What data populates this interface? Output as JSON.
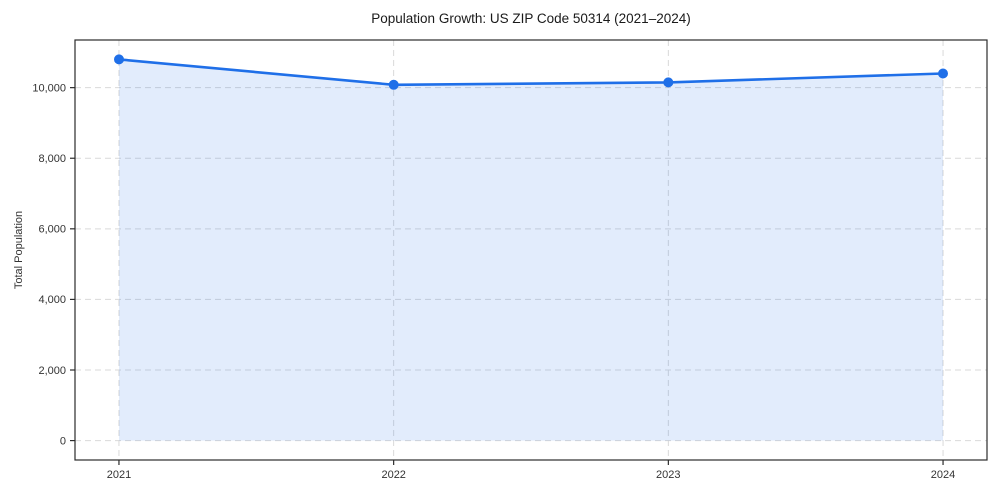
{
  "figure": {
    "background": "#ffffff"
  },
  "chart_data": {
    "type": "line",
    "title": "Population Growth: US ZIP Code 50314 (2021–2024)",
    "xlabel": "",
    "ylabel": "Total Population",
    "x": [
      2021,
      2022,
      2023,
      2024
    ],
    "x_tick_labels": [
      "2021",
      "2022",
      "2023",
      "2024"
    ],
    "series": [
      {
        "name": "Total Population",
        "values": [
          10800,
          10080,
          10150,
          10400
        ]
      }
    ],
    "y_ticks": [
      0,
      2000,
      4000,
      6000,
      8000,
      10000
    ],
    "y_tick_labels": [
      "0",
      "2,000",
      "4,000",
      "6,000",
      "8,000",
      "10,000"
    ],
    "xlim": [
      2020.84,
      2024.16
    ],
    "ylim": [
      -550,
      11350
    ],
    "grid": true,
    "grid_style": "dashed",
    "legend_position": "none",
    "area_fill_to_zero": true,
    "colors": {
      "line": "#1f6fe8",
      "marker": "#1f6fe8",
      "fill": "#1f6fe8",
      "fill_opacity": 0.13,
      "grid": "#d9d9d9",
      "spine": "#2b2b2b",
      "tick": "#2b2b2b",
      "tick_label": "#333333",
      "title": "#1a1a1a",
      "background": "#ffffff"
    }
  }
}
